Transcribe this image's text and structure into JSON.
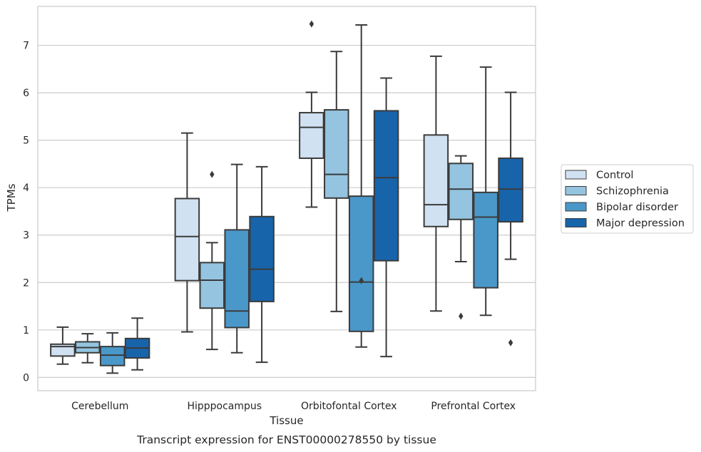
{
  "chart_data": {
    "type": "box",
    "xlabel": "Tissue",
    "ylabel": "TPMs",
    "caption": "Transcript expression for ENST00000278550 by tissue",
    "ylim": [
      -0.28,
      7.82
    ],
    "yticks": [
      "0",
      "1",
      "2",
      "3",
      "4",
      "5",
      "6",
      "7"
    ],
    "grid": "horizontal",
    "legend_position": "right",
    "categories": [
      "Cerebellum",
      "Hipppocampus",
      "Orbitofontal Cortex",
      "Prefrontal Cortex"
    ],
    "series": [
      {
        "name": "Control",
        "color": "#d0e1f2",
        "boxes": [
          {
            "whisker_low": 0.28,
            "q1": 0.45,
            "median": 0.65,
            "q3": 0.7,
            "whisker_high": 1.06,
            "outliers": []
          },
          {
            "whisker_low": 0.96,
            "q1": 2.04,
            "median": 2.97,
            "q3": 3.77,
            "whisker_high": 5.15,
            "outliers": []
          },
          {
            "whisker_low": 3.59,
            "q1": 4.62,
            "median": 5.27,
            "q3": 5.58,
            "whisker_high": 6.01,
            "outliers": [
              7.45
            ]
          },
          {
            "whisker_low": 1.4,
            "q1": 3.18,
            "median": 3.64,
            "q3": 5.11,
            "whisker_high": 6.77,
            "outliers": []
          }
        ]
      },
      {
        "name": "Schizophrenia",
        "color": "#94c4df",
        "boxes": [
          {
            "whisker_low": 0.31,
            "q1": 0.52,
            "median": 0.63,
            "q3": 0.75,
            "whisker_high": 0.92,
            "outliers": []
          },
          {
            "whisker_low": 0.59,
            "q1": 1.46,
            "median": 2.05,
            "q3": 2.42,
            "whisker_high": 2.84,
            "outliers": [
              4.28
            ]
          },
          {
            "whisker_low": 1.39,
            "q1": 3.78,
            "median": 4.28,
            "q3": 5.64,
            "whisker_high": 6.87,
            "outliers": []
          },
          {
            "whisker_low": 2.44,
            "q1": 3.33,
            "median": 3.97,
            "q3": 4.51,
            "whisker_high": 4.67,
            "outliers": [
              1.29
            ]
          }
        ]
      },
      {
        "name": "Bipolar disorder",
        "color": "#4a98c9",
        "boxes": [
          {
            "whisker_low": 0.09,
            "q1": 0.25,
            "median": 0.47,
            "q3": 0.65,
            "whisker_high": 0.94,
            "outliers": []
          },
          {
            "whisker_low": 0.52,
            "q1": 1.05,
            "median": 1.4,
            "q3": 3.11,
            "whisker_high": 4.49,
            "outliers": []
          },
          {
            "whisker_low": 0.64,
            "q1": 0.97,
            "median": 2.01,
            "q3": 3.82,
            "whisker_high": 7.43,
            "outliers": [
              2.04
            ]
          },
          {
            "whisker_low": 1.31,
            "q1": 1.89,
            "median": 3.38,
            "q3": 3.9,
            "whisker_high": 6.54,
            "outliers": []
          }
        ]
      },
      {
        "name": "Major depression",
        "color": "#1764ab",
        "boxes": [
          {
            "whisker_low": 0.16,
            "q1": 0.41,
            "median": 0.62,
            "q3": 0.82,
            "whisker_high": 1.25,
            "outliers": []
          },
          {
            "whisker_low": 0.32,
            "q1": 1.6,
            "median": 2.28,
            "q3": 3.39,
            "whisker_high": 4.44,
            "outliers": []
          },
          {
            "whisker_low": 0.44,
            "q1": 2.46,
            "median": 4.21,
            "q3": 5.62,
            "whisker_high": 6.31,
            "outliers": []
          },
          {
            "whisker_low": 2.49,
            "q1": 3.28,
            "median": 3.97,
            "q3": 4.62,
            "whisker_high": 6.01,
            "outliers": [
              0.73
            ]
          }
        ]
      }
    ]
  }
}
